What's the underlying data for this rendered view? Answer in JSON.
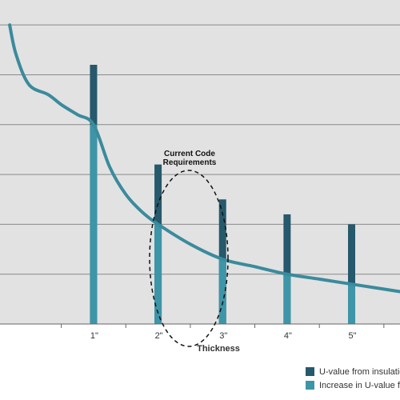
{
  "chart_data": {
    "type": "bar",
    "title": "",
    "xlabel": "Thickness",
    "ylabel": "",
    "categories": [
      "1\"",
      "2\"",
      "3\"",
      "4\"",
      "5\""
    ],
    "x": [
      1,
      2,
      3,
      4,
      5
    ],
    "series": [
      {
        "name": "U-value from insulation t",
        "values": [
          5.2,
          3.2,
          2.5,
          2.2,
          2.0
        ],
        "color": "#25596b"
      },
      {
        "name": "Increase in U-value from",
        "values": [
          4.0,
          2.0,
          1.3,
          1.0,
          0.8
        ],
        "color": "#3d95a8"
      }
    ],
    "curve": {
      "color": "#3a8b9c",
      "x": [
        -0.3,
        -0.2,
        0.0,
        0.3,
        0.5,
        0.75,
        1.0,
        1.25,
        1.5,
        1.75,
        2.0,
        2.5,
        3.0,
        3.5,
        4.0,
        4.5,
        5.0,
        5.5,
        5.75
      ],
      "y": [
        6.0,
        5.4,
        4.8,
        4.6,
        4.4,
        4.2,
        4.0,
        3.15,
        2.6,
        2.25,
        2.0,
        1.6,
        1.3,
        1.15,
        1.0,
        0.9,
        0.8,
        0.7,
        0.65
      ]
    },
    "ylim": [
      0,
      6.5
    ],
    "xlim": [
      -0.45,
      5.75
    ],
    "grid": true,
    "annotation": {
      "text_line1": "Current Code",
      "text_line2": "Requirements",
      "target_category": 3
    },
    "legend_position": "bottom-right"
  }
}
